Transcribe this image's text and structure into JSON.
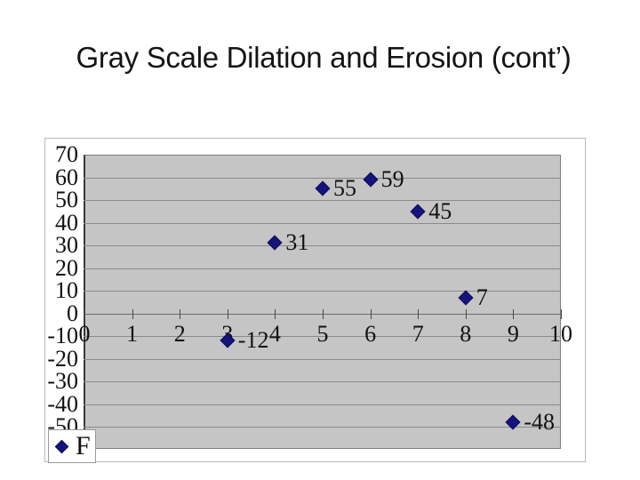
{
  "title": "Gray Scale Dilation and Erosion (cont’)",
  "legend": {
    "series_label": "F"
  },
  "chart_data": {
    "type": "scatter",
    "series": [
      {
        "name": "F",
        "x": [
          3,
          4,
          5,
          6,
          7,
          8,
          9
        ],
        "y": [
          -12,
          31,
          55,
          59,
          45,
          7,
          -48
        ],
        "point_labels": [
          "-12",
          "31",
          "55",
          "59",
          "45",
          "7",
          "-48"
        ]
      }
    ],
    "x_ticks": [
      0,
      1,
      2,
      3,
      4,
      5,
      6,
      7,
      8,
      9,
      10
    ],
    "y_ticks": [
      70,
      60,
      50,
      40,
      30,
      20,
      10,
      0,
      -10,
      -20,
      -30,
      -40,
      -50
    ],
    "xlim": [
      0,
      10
    ],
    "ylim": [
      -60,
      70
    ],
    "grid": "horizontal-only",
    "legend_position": "bottom-left",
    "marker": "diamond",
    "marker_color": "#14147c",
    "plot_bg_color": "#c5c5c5",
    "gridline_color": "#8a8a8a",
    "title": "",
    "xlabel": "",
    "ylabel": ""
  }
}
